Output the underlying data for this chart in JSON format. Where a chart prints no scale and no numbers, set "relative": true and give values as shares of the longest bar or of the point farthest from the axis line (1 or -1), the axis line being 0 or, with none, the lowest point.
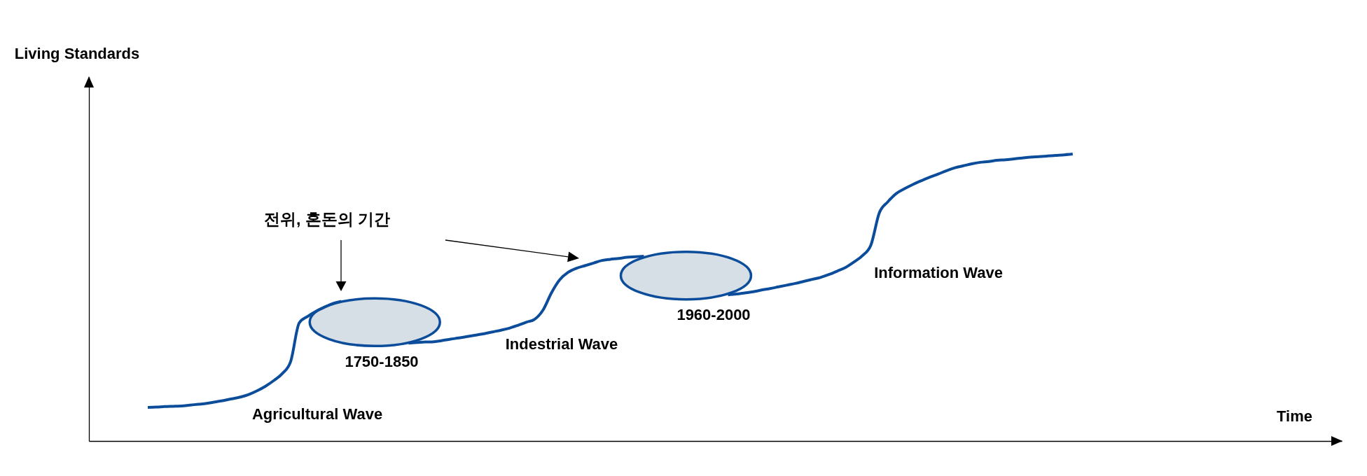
{
  "chart_data": {
    "type": "line",
    "relative": true,
    "xlabel": "Time",
    "categories": [
      null,
      null,
      null,
      null,
      null,
      null,
      null,
      null,
      null,
      null,
      null,
      null,
      null,
      null,
      null,
      null,
      null,
      null,
      null,
      null,
      null,
      null,
      null,
      null,
      null,
      null,
      null,
      null,
      null,
      null,
      null,
      null,
      null,
      null,
      null,
      null,
      null,
      null,
      null,
      null,
      null,
      null,
      null,
      null,
      null,
      null,
      null,
      null,
      null,
      null,
      null,
      null,
      null,
      null,
      null,
      null,
      null,
      null,
      null,
      null,
      null,
      null,
      null,
      null,
      null,
      null,
      null,
      null,
      null,
      null,
      null,
      null,
      null,
      null,
      null,
      null,
      null,
      null,
      null,
      null,
      null,
      null,
      null,
      null,
      null,
      null,
      null,
      null,
      null,
      null,
      null,
      null,
      null,
      null,
      null,
      null,
      null,
      null,
      null,
      null,
      null,
      null,
      null,
      null,
      null,
      null,
      null,
      null,
      null,
      null,
      null,
      null,
      null,
      null,
      null,
      null,
      null,
      null,
      null,
      null,
      null,
      null,
      null,
      null,
      null,
      null,
      null,
      null,
      null,
      null,
      null,
      null,
      null,
      null,
      null,
      null,
      null,
      null,
      null,
      null,
      null,
      null,
      null,
      null,
      null,
      null,
      null,
      null,
      null,
      null
    ],
    "series": [
      {
        "color": "#0b4d9b",
        "values": [
          null,
          null,
          null,
          null,
          null,
          null,
          null,
          0.117,
          0.118,
          0.12,
          0.121,
          0.122,
          0.125,
          0.128,
          0.131,
          0.136,
          0.141,
          0.147,
          0.153,
          0.162,
          0.175,
          0.191,
          0.211,
          0.235,
          0.278,
          0.411,
          0.434,
          0.452,
          0.466,
          0.479,
          0.487,
          null,
          null,
          null,
          null,
          null,
          null,
          null,
          null,
          null,
          null,
          null,
          null,
          null,
          null,
          null,
          null,
          null,
          null,
          null,
          null,
          null,
          null,
          null,
          null,
          null,
          null,
          null,
          null,
          null,
          null,
          null,
          null,
          null,
          null,
          null,
          null,
          null,
          null,
          null,
          null,
          null,
          null,
          null,
          null,
          null,
          null,
          null,
          null,
          null,
          null,
          null,
          null,
          null,
          null,
          null,
          null,
          null,
          null,
          null,
          null,
          null,
          null,
          null,
          null,
          null,
          null,
          null,
          null,
          null,
          null,
          null,
          null,
          null,
          null,
          null,
          null,
          null,
          null,
          null,
          null,
          null,
          null,
          null,
          null,
          null,
          null,
          null,
          null,
          null,
          null,
          null,
          null,
          null,
          null,
          null,
          null,
          null,
          null,
          null,
          null,
          null,
          null,
          null,
          null,
          null,
          null,
          null,
          null,
          null,
          null,
          null,
          null,
          null,
          null,
          null,
          null,
          null,
          null,
          null
        ]
      },
      {
        "color": "#0b4d9b",
        "values": [
          null,
          null,
          null,
          null,
          null,
          null,
          null,
          null,
          null,
          null,
          null,
          null,
          null,
          null,
          null,
          null,
          null,
          null,
          null,
          null,
          null,
          null,
          null,
          null,
          null,
          null,
          null,
          null,
          null,
          null,
          null,
          null,
          null,
          null,
          null,
          null,
          null,
          null,
          0.341,
          0.343,
          0.345,
          0.346,
          0.35,
          0.355,
          0.359,
          0.364,
          0.369,
          0.374,
          0.38,
          0.386,
          0.393,
          0.403,
          0.414,
          0.424,
          0.456,
          0.516,
          0.562,
          0.588,
          0.602,
          0.611,
          0.62,
          0.629,
          0.633,
          0.636,
          0.64,
          0.642,
          0.644,
          null,
          null,
          null,
          null,
          null,
          null,
          null,
          null,
          null,
          null,
          null,
          null,
          null,
          null,
          null,
          null,
          null,
          null,
          null,
          null,
          null,
          null,
          null,
          null,
          null,
          null,
          null,
          null,
          null,
          null,
          null,
          null,
          null,
          null,
          null,
          null,
          null,
          null,
          null,
          null,
          null,
          null,
          null,
          null,
          null,
          null,
          null,
          null,
          null,
          null,
          null,
          null,
          null,
          null,
          null,
          null,
          null,
          null,
          null,
          null,
          null,
          null,
          null,
          null,
          null,
          null,
          null,
          null,
          null,
          null,
          null,
          null,
          null,
          null,
          null,
          null,
          null,
          null,
          null,
          null,
          null,
          null,
          null
        ]
      },
      {
        "color": "#0b4d9b",
        "values": [
          null,
          null,
          null,
          null,
          null,
          null,
          null,
          null,
          null,
          null,
          null,
          null,
          null,
          null,
          null,
          null,
          null,
          null,
          null,
          null,
          null,
          null,
          null,
          null,
          null,
          null,
          null,
          null,
          null,
          null,
          null,
          null,
          null,
          null,
          null,
          null,
          null,
          null,
          null,
          null,
          null,
          null,
          null,
          null,
          null,
          null,
          null,
          null,
          null,
          null,
          null,
          null,
          null,
          null,
          null,
          null,
          null,
          null,
          null,
          null,
          null,
          null,
          null,
          null,
          null,
          null,
          null,
          null,
          null,
          null,
          null,
          null,
          null,
          null,
          null,
          null,
          0.509,
          0.512,
          0.516,
          0.52,
          0.526,
          0.531,
          0.537,
          0.543,
          0.549,
          0.556,
          0.563,
          0.57,
          0.58,
          0.592,
          0.605,
          0.624,
          0.646,
          0.683,
          0.795,
          0.833,
          0.862,
          0.879,
          0.894,
          0.907,
          0.919,
          0.93,
          0.942,
          0.952,
          0.959,
          0.966,
          0.971,
          0.974,
          0.978,
          0.98,
          0.983,
          0.986,
          0.989,
          0.991,
          0.993,
          0.995,
          0.997,
          1,
          null,
          null,
          null,
          null,
          null,
          null,
          null,
          null,
          null,
          null,
          null,
          null,
          null,
          null,
          null,
          null,
          null,
          null,
          null,
          null,
          null,
          null,
          null,
          null,
          null,
          null,
          null,
          null,
          null,
          null,
          null,
          null
        ]
      }
    ],
    "annotations": [
      "Living Standards",
      "전위, 혼돈의 기간",
      "Agricultural Wave",
      "1750-1850",
      "Indestrial Wave",
      "1960-2000",
      "Information Wave"
    ]
  }
}
